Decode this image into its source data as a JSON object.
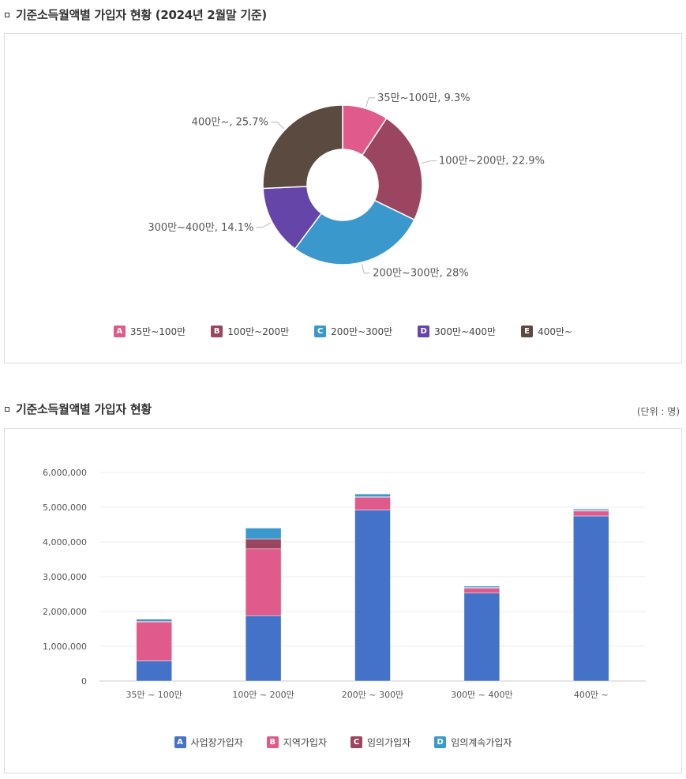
{
  "section1": {
    "title": "기준소득월액별 가입자 현황 (2024년 2월말 기준)"
  },
  "section2": {
    "title": "기준소득월액별 가입자 현황",
    "unit": "(단위 : 명)"
  },
  "chart_data": [
    {
      "type": "pie",
      "donut": true,
      "categories": [
        "35만~100만",
        "100만~200만",
        "200만~300만",
        "300만~400만",
        "400만~"
      ],
      "values": [
        9.3,
        22.9,
        28,
        14.1,
        25.7
      ],
      "data_labels": [
        "35만~100만, 9.3%",
        "100만~200만, 22.9%",
        "200만~300만, 28%",
        "300만~400만, 14.1%",
        "400만~, 25.7%"
      ],
      "colors": [
        "#e05a8c",
        "#9a4660",
        "#3a98cc",
        "#6546a8",
        "#5a4a40"
      ],
      "legend": {
        "position": "bottom",
        "badges": [
          "A",
          "B",
          "C",
          "D",
          "E"
        ]
      }
    },
    {
      "type": "bar",
      "stacked": true,
      "categories": [
        "35만 ~ 100만",
        "100만 ~ 200만",
        "200만 ~ 300만",
        "300만 ~ 400만",
        "400만 ~"
      ],
      "series": [
        {
          "name": "사업장가입자",
          "color": "#4472c8",
          "values": [
            580000,
            1880000,
            4920000,
            2530000,
            4750000
          ]
        },
        {
          "name": "지역가입자",
          "color": "#e05a8c",
          "values": [
            1120000,
            1920000,
            360000,
            140000,
            140000
          ]
        },
        {
          "name": "임의가입자",
          "color": "#9a4660",
          "values": [
            20000,
            290000,
            20000,
            20000,
            20000
          ]
        },
        {
          "name": "임의계속가입자",
          "color": "#3a98cc",
          "values": [
            60000,
            310000,
            80000,
            40000,
            40000
          ]
        }
      ],
      "yticks": [
        "0",
        "1,000,000",
        "2,000,000",
        "3,000,000",
        "4,000,000",
        "5,000,000",
        "6,000,000"
      ],
      "ylim": [
        0,
        6000000
      ],
      "grid": true,
      "legend": {
        "position": "bottom",
        "badges": [
          "A",
          "B",
          "C",
          "D"
        ]
      }
    }
  ]
}
